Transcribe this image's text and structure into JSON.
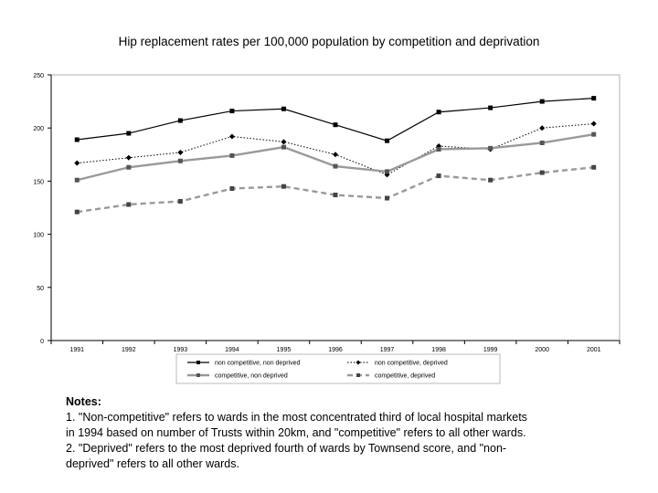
{
  "title": "Hip replacement rates per 100,000 population by competition and deprivation",
  "chart_data": {
    "type": "line",
    "x": [
      "1991",
      "1992",
      "1993",
      "1994",
      "1995",
      "1996",
      "1997",
      "1998",
      "1999",
      "2000",
      "2001"
    ],
    "ylim": [
      0,
      250
    ],
    "yticks": [
      "0",
      "50",
      "100",
      "150",
      "200",
      "250"
    ],
    "grid": false,
    "legend_position": "bottom",
    "series": [
      {
        "name": "non competitive, non deprived",
        "style": "solid-black",
        "color": "#000000",
        "values": [
          189,
          195,
          207,
          216,
          218,
          203,
          188,
          215,
          219,
          225,
          228
        ]
      },
      {
        "name": "non competitive, deprived",
        "style": "dotted-black",
        "color": "#000000",
        "values": [
          167,
          172,
          177,
          192,
          187,
          175,
          156,
          183,
          180,
          200,
          204
        ]
      },
      {
        "name": "competitive, non deprived",
        "style": "solid-gray",
        "color": "#999999",
        "values": [
          151,
          163,
          169,
          174,
          182,
          164,
          159,
          180,
          181,
          186,
          194
        ]
      },
      {
        "name": "competitive, deprived",
        "style": "dashed-gray",
        "color": "#999999",
        "values": [
          121,
          128,
          131,
          143,
          145,
          137,
          134,
          155,
          151,
          158,
          163
        ]
      }
    ]
  },
  "notes": {
    "heading": "Notes:",
    "line1": "1. \"Non-competitive\" refers to wards in the most concentrated third of local hospital markets",
    "line2": "in 1994 based on number of Trusts within 20km, and \"competitive\" refers to all other wards.",
    "line3": "2. \"Deprived\" refers to the most deprived fourth of wards by Townsend score, and \"non-",
    "line4": "deprived\" refers to all other wards."
  }
}
